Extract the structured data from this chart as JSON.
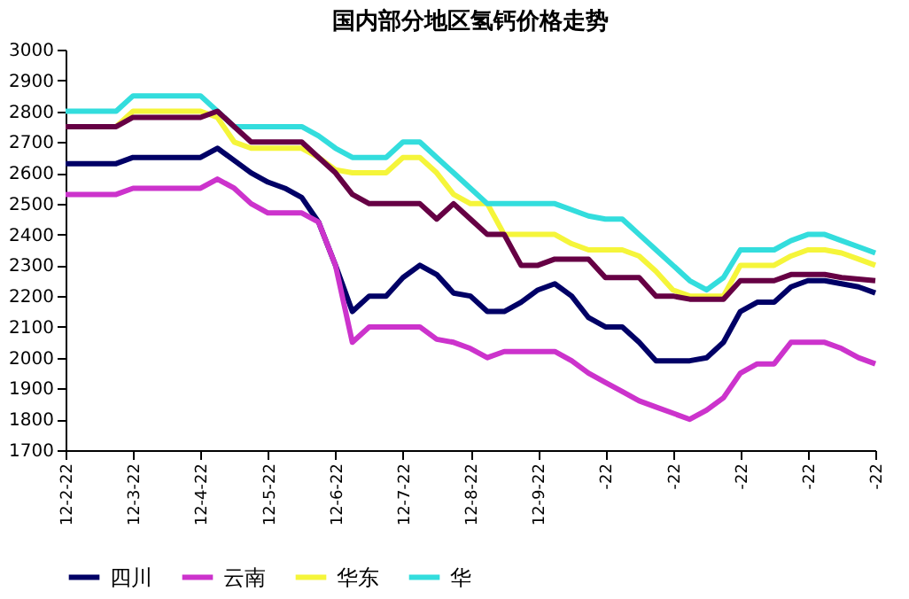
{
  "chart_data": {
    "type": "line",
    "title": "国内部分地区氢钙价格走势",
    "categories": [
      "12-2-22",
      null,
      null,
      null,
      "12-3-22",
      null,
      null,
      null,
      "12-4-22",
      null,
      null,
      null,
      "12-5-22",
      null,
      null,
      null,
      "12-6-22",
      null,
      null,
      null,
      "12-7-22",
      null,
      null,
      null,
      "12-8-22",
      null,
      null,
      null,
      "12-9-22",
      null,
      null,
      null,
      "-22",
      null,
      null,
      null,
      "-22",
      null,
      null,
      null,
      "-22",
      null,
      null,
      null,
      "-22",
      null,
      null,
      null,
      "-22"
    ],
    "series": [
      {
        "name": "四川",
        "color": "#000066",
        "values": [
          2630,
          2630,
          2630,
          2630,
          2650,
          2650,
          2650,
          2650,
          2650,
          2680,
          2640,
          2600,
          2570,
          2550,
          2520,
          2440,
          2300,
          2150,
          2200,
          2200,
          2260,
          2300,
          2270,
          2210,
          2200,
          2150,
          2150,
          2180,
          2220,
          2240,
          2200,
          2130,
          2100,
          2100,
          2050,
          1990,
          1990,
          1990,
          2000,
          2050,
          2150,
          2180,
          2180,
          2230,
          2250,
          2250,
          2240,
          2230,
          2210
        ]
      },
      {
        "name": "云南",
        "color": "#cc33cc",
        "values": [
          2530,
          2530,
          2530,
          2530,
          2550,
          2550,
          2550,
          2550,
          2550,
          2580,
          2550,
          2500,
          2470,
          2470,
          2470,
          2440,
          2300,
          2050,
          2100,
          2100,
          2100,
          2100,
          2060,
          2050,
          2030,
          2000,
          2020,
          2020,
          2020,
          2020,
          1990,
          1950,
          1920,
          1890,
          1860,
          1840,
          1820,
          1800,
          1830,
          1870,
          1950,
          1980,
          1980,
          2050,
          2050,
          2050,
          2030,
          2000,
          1980
        ]
      },
      {
        "name": "华东",
        "color": "#f5f53a",
        "values": [
          null,
          null,
          null,
          2750,
          2800,
          2800,
          2800,
          2800,
          2800,
          2780,
          2700,
          2680,
          2680,
          2680,
          2680,
          2650,
          2610,
          2600,
          2600,
          2600,
          2650,
          2650,
          2600,
          2530,
          2500,
          2500,
          2400,
          2400,
          2400,
          2400,
          2370,
          2350,
          2350,
          2350,
          2330,
          2280,
          2220,
          2200,
          2200,
          2200,
          2300,
          2300,
          2300,
          2330,
          2350,
          2350,
          2340,
          2320,
          2300
        ]
      },
      {
        "name": "华",
        "color": "#33dddd",
        "values": [
          2800,
          2800,
          2800,
          2800,
          2850,
          2850,
          2850,
          2850,
          2850,
          2800,
          2750,
          2750,
          2750,
          2750,
          2750,
          2720,
          2680,
          2650,
          2650,
          2650,
          2700,
          2700,
          2650,
          2600,
          2550,
          2500,
          2500,
          2500,
          2500,
          2500,
          2480,
          2460,
          2450,
          2450,
          2400,
          2350,
          2300,
          2250,
          2220,
          2260,
          2350,
          2350,
          2350,
          2380,
          2400,
          2400,
          2380,
          2360,
          2340
        ]
      },
      {
        "color": "#660044",
        "values": [
          2750,
          2750,
          2750,
          2750,
          2780,
          2780,
          2780,
          2780,
          2780,
          2800,
          2750,
          2700,
          2700,
          2700,
          2700,
          2650,
          2600,
          2530,
          2500,
          2500,
          2500,
          2500,
          2450,
          2500,
          2450,
          2400,
          2400,
          2300,
          2300,
          2320,
          2320,
          2320,
          2260,
          2260,
          2260,
          2200,
          2200,
          2190,
          2190,
          2190,
          2250,
          2250,
          2250,
          2270,
          2270,
          2270,
          2260,
          2255,
          2250
        ]
      }
    ],
    "ylim": [
      1700,
      3000
    ],
    "yticks": [
      1700,
      1800,
      1900,
      2000,
      2100,
      2200,
      2300,
      2400,
      2500,
      2600,
      2700,
      2800,
      2900,
      3000
    ],
    "legend": "bottom",
    "grid": false,
    "marker": "none",
    "line_style": "solid"
  }
}
